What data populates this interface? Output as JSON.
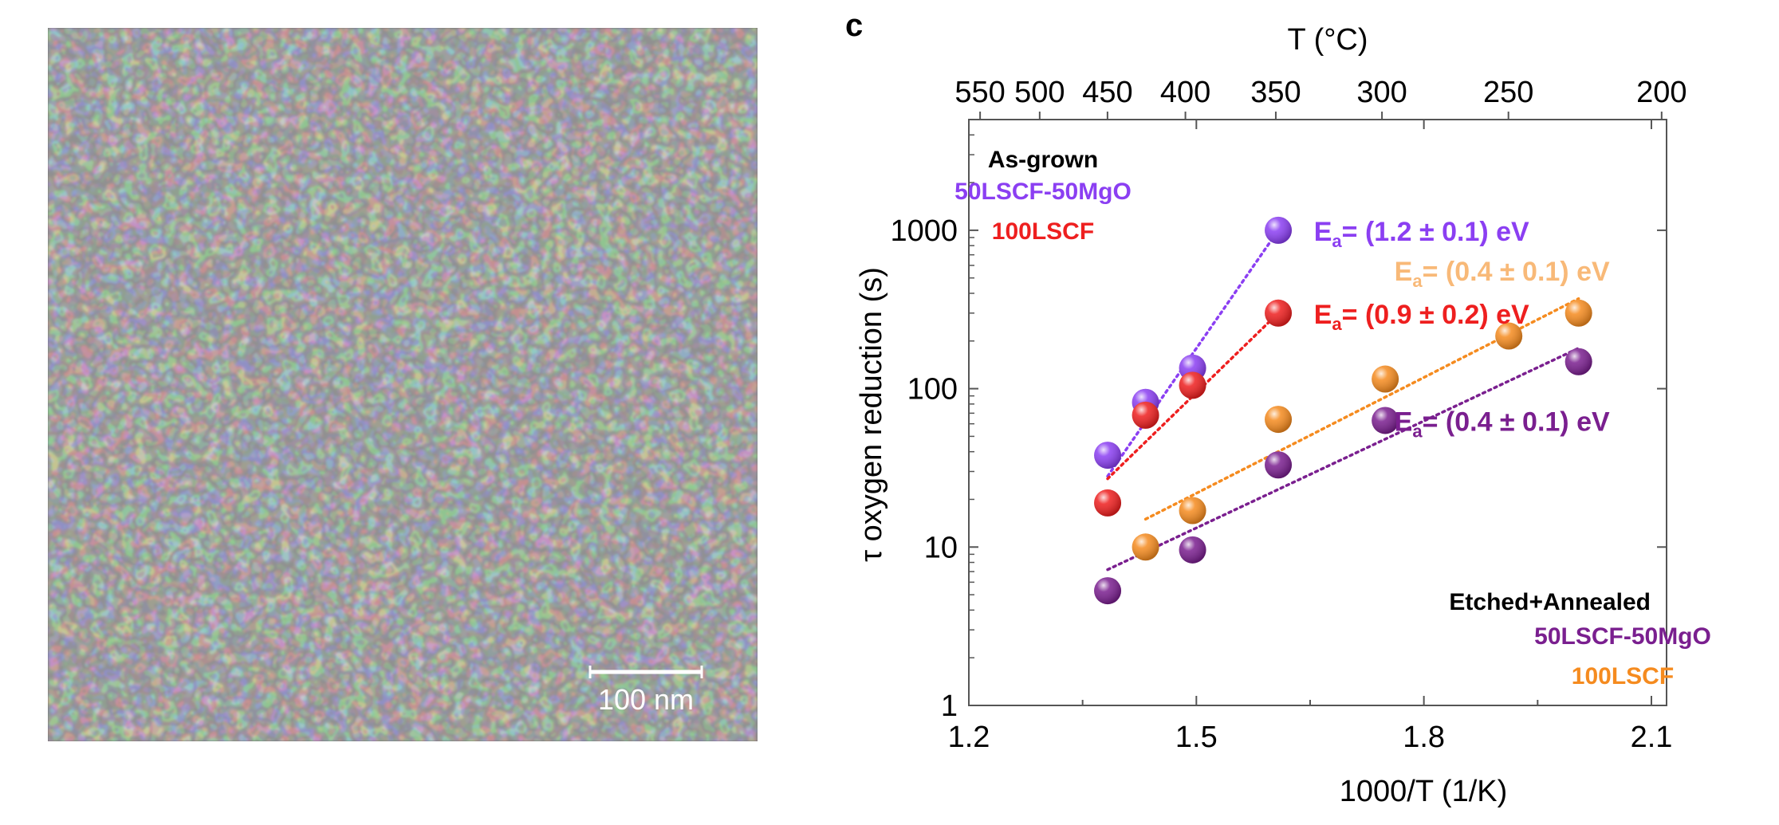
{
  "sem_image": {
    "scale_bar_label": "100 nm"
  },
  "panel_label": "c",
  "chart_data": {
    "type": "scatter",
    "title": "",
    "xlabel": "1000/T (1/K)",
    "ylabel": "τ oxygen reduction (s)",
    "top_axis_label": "T (°C)",
    "xlim": [
      1.2,
      2.12
    ],
    "ylim": [
      1,
      5000
    ],
    "y_scale": "log",
    "x_ticks": [
      "1.2",
      "1.5",
      "1.8",
      "2.1"
    ],
    "y_ticks": [
      "1",
      "10",
      "100",
      "1000"
    ],
    "top_ticks": [
      "550",
      "500",
      "450",
      "400",
      "350",
      "300",
      "250",
      "200"
    ],
    "grid": false,
    "legend_asgrown": {
      "heading": "As-grown",
      "entries": [
        "50LSCF-50MgO",
        "100LSCF"
      ]
    },
    "legend_etched": {
      "heading": "Etched+Annealed",
      "entries": [
        "50LSCF-50MgO",
        "100LSCF"
      ]
    },
    "series": [
      {
        "group": "As-grown",
        "name": "50LSCF-50MgO",
        "color": "#8b3ff2",
        "x": [
          1.383,
          1.433,
          1.495,
          1.608
        ],
        "y": [
          38,
          82,
          135,
          1000
        ],
        "fit_x": [
          1.383,
          1.608
        ],
        "fit_y": [
          28,
          1000
        ],
        "annotation": "= (1.2 ± 0.1) eV"
      },
      {
        "group": "As-grown",
        "name": "100LSCF",
        "color": "#ee1f1f",
        "x": [
          1.383,
          1.433,
          1.495,
          1.608
        ],
        "y": [
          19,
          68,
          105,
          300
        ],
        "fit_x": [
          1.383,
          1.608
        ],
        "fit_y": [
          27,
          300
        ],
        "annotation": "= (0.9 ± 0.2) eV"
      },
      {
        "group": "Etched+Annealed",
        "name": "50LSCF-50MgO",
        "color": "#7a1f8f",
        "x": [
          1.383,
          1.495,
          1.608,
          1.749,
          2.004
        ],
        "y": [
          5.3,
          9.6,
          33,
          63,
          148
        ],
        "fit_x": [
          1.383,
          2.004
        ],
        "fit_y": [
          7.2,
          180
        ],
        "annotation": "= (0.4 ± 0.1) eV"
      },
      {
        "group": "Etched+Annealed",
        "name": "100LSCF",
        "color": "#f58b1f",
        "x": [
          1.433,
          1.495,
          1.608,
          1.749,
          1.912,
          2.004
        ],
        "y": [
          10,
          17,
          64,
          115,
          215,
          300
        ],
        "fit_x": [
          1.433,
          2.004
        ],
        "fit_y": [
          15,
          370
        ],
        "annotation": "= (0.4 ± 0.1) eV"
      }
    ],
    "annotation_prefix": "E",
    "annotation_subscript": "a"
  }
}
